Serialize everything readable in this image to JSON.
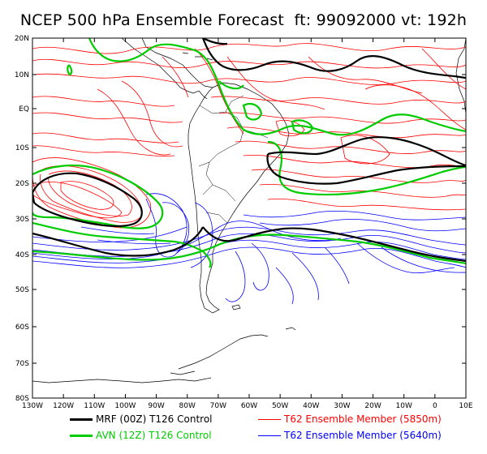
{
  "header": {
    "title": "NCEP 500 hPa Ensemble Forecast",
    "ft": "ft: 99092000 vt: 192h"
  },
  "axes": {
    "lat_labels": [
      "20N",
      "10N",
      "EQ",
      "10S",
      "20S",
      "30S",
      "40S",
      "50S",
      "60S",
      "70S",
      "80S"
    ],
    "lon_labels": [
      "130W",
      "120W",
      "110W",
      "100W",
      "90W",
      "80W",
      "70W",
      "60W",
      "50W",
      "40W",
      "30W",
      "20W",
      "10W",
      "0",
      "10E"
    ]
  },
  "legend": [
    {
      "label": "MRF (00Z) T126 Control",
      "color": "#000000",
      "width": 3
    },
    {
      "label": "AVN (12Z) T126 Control",
      "color": "#00cc00",
      "width": 3
    },
    {
      "label": "T62 Ensemble Member (5850m)",
      "color": "#ff0000",
      "width": 1
    },
    {
      "label": "T62 Ensemble Member (5640m)",
      "color": "#0000ff",
      "width": 1
    }
  ],
  "colors": {
    "control_mrf": "#000000",
    "control_avn": "#00cc00",
    "ens_5850": "#ff0000",
    "ens_5640": "#0000ff"
  }
}
